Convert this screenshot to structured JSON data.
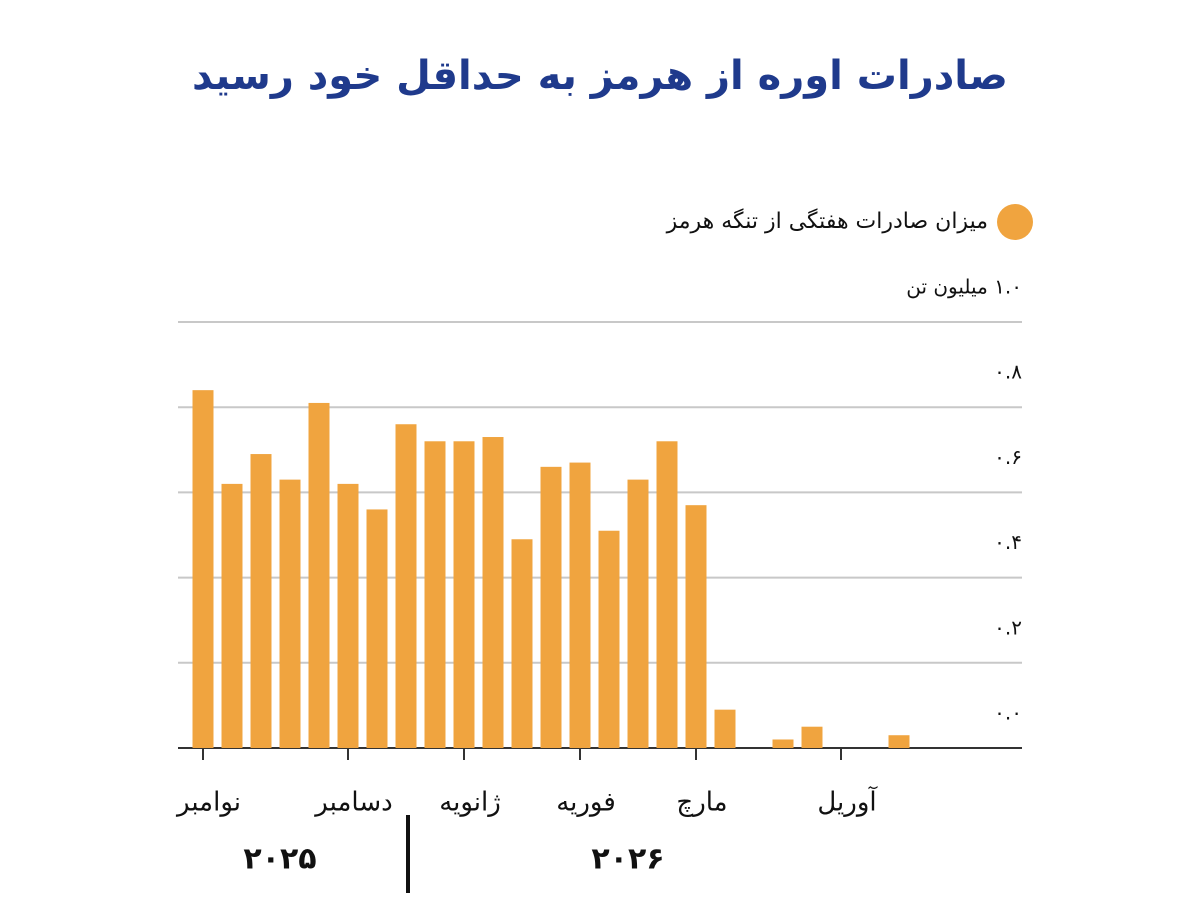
{
  "chart_data": {
    "type": "bar",
    "title": "صادرات اوره از هرمز به حداقل خود رسید",
    "legend": "میزان صادرات هفتگی از تنگه هرمز",
    "color": "#f0a43f",
    "categories": [
      "نوامبر",
      null,
      null,
      null,
      null,
      "دسامبر",
      null,
      null,
      null,
      "ژانویه",
      null,
      null,
      null,
      "فوریه",
      null,
      null,
      null,
      "مارچ",
      null,
      null,
      null,
      null,
      "آوریل",
      null,
      null
    ],
    "values": [
      0.84,
      0.62,
      0.69,
      0.63,
      0.81,
      0.62,
      0.56,
      0.76,
      0.72,
      0.72,
      0.73,
      0.49,
      0.66,
      0.67,
      0.51,
      0.63,
      0.72,
      0.57,
      0.09,
      0,
      0.02,
      0.05,
      0,
      0,
      0.03
    ],
    "year_labels": [
      "۲۰۲۵",
      "۲۰۲۶"
    ],
    "ylim": [
      0,
      1
    ],
    "yticks": [
      {
        "value": 0,
        "label": "۰.۰"
      },
      {
        "value": 0.2,
        "label": "۰.۲"
      },
      {
        "value": 0.4,
        "label": "۰.۴"
      },
      {
        "value": 0.6,
        "label": "۰.۶"
      },
      {
        "value": 0.8,
        "label": "۰.۸"
      },
      {
        "value": 1,
        "label": "۱.۰ میلیون تن"
      }
    ],
    "grid": true
  }
}
